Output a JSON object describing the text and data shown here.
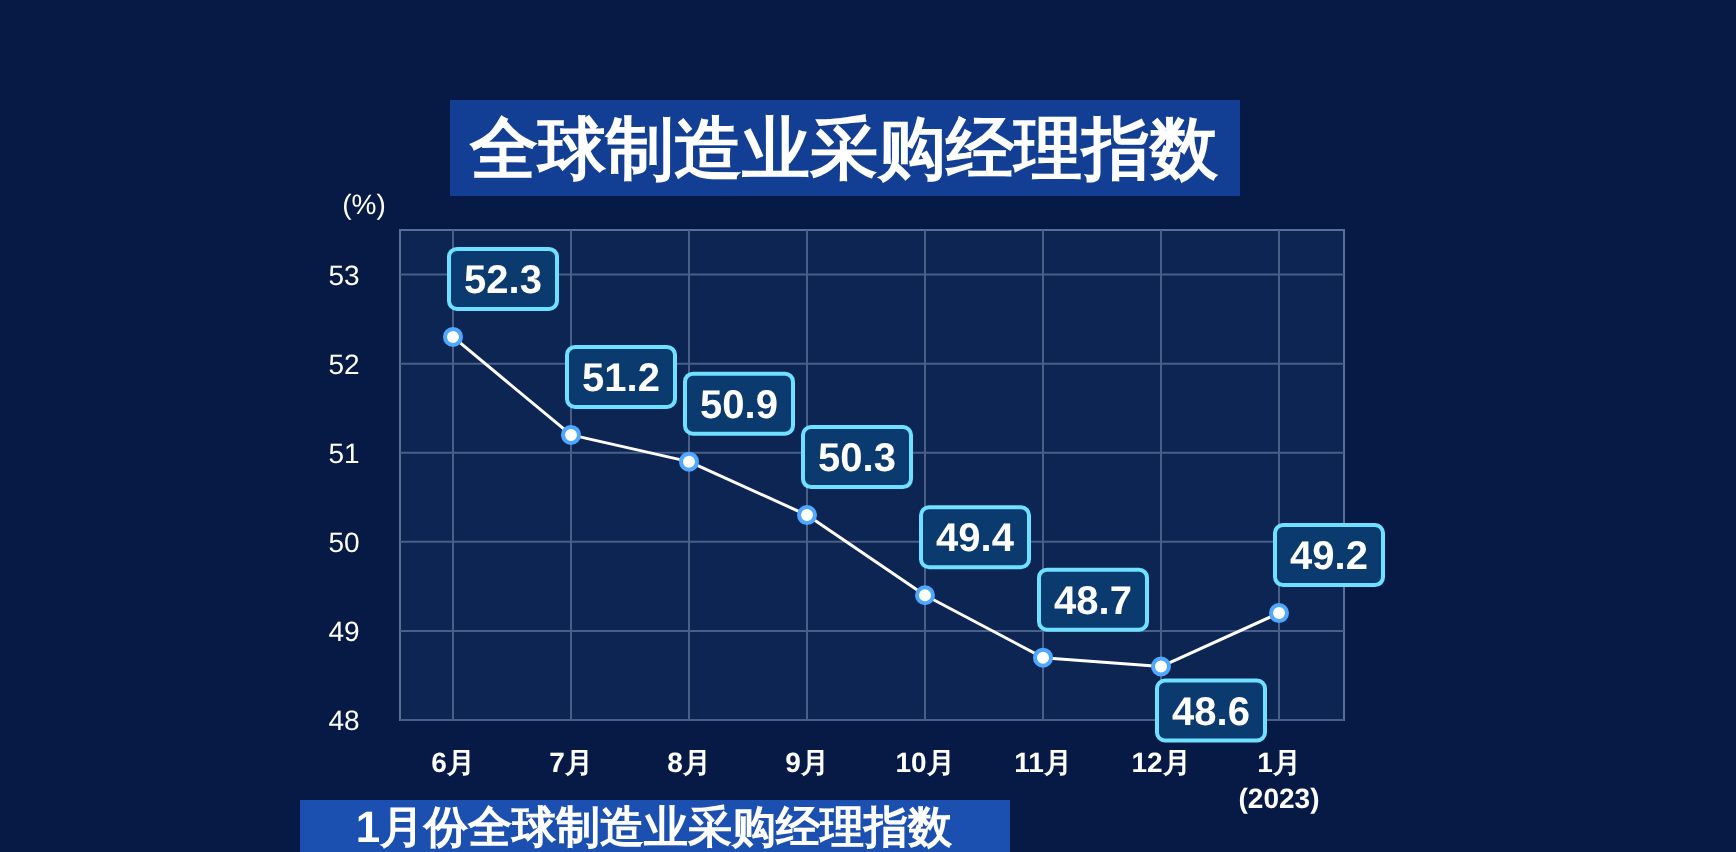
{
  "chart_data": {
    "type": "line",
    "title": "全球制造业采购经理指数",
    "ylabel": "(%)",
    "categories": [
      "6月",
      "7月",
      "8月",
      "9月",
      "10月",
      "11月",
      "12月",
      "1月\n(2023)"
    ],
    "series": [
      {
        "color": "#ffffff",
        "values": [
          52.3,
          51.2,
          50.9,
          50.3,
          49.4,
          48.7,
          48.6,
          49.2
        ]
      }
    ],
    "ylim": [
      48,
      53.5
    ],
    "yticks": [
      48,
      49,
      50,
      51,
      52,
      53
    ],
    "grid": true,
    "marker": "circle",
    "line_style": "solid",
    "data_labels": true,
    "annotations": [
      "1月份全球制造业采购经理指数"
    ]
  }
}
